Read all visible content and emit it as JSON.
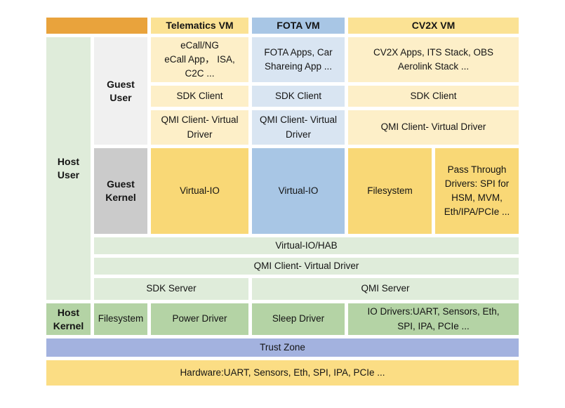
{
  "colors": {
    "orange": "#E9A33C",
    "yellow_header": "#FBE294",
    "yellow_light": "#FDEFC8",
    "yellow_dark": "#F9D876",
    "yellow_hardware": "#FBDD84",
    "blue_header": "#A8C6E5",
    "blue_light": "#D9E5F2",
    "blue_trust": "#A3B2DF",
    "green_light": "#DFECDA",
    "green_dark": "#B4D3A5",
    "gray_light": "#F0F0F0",
    "gray_dark": "#CBCBCB"
  },
  "headers": {
    "telematics": "Telematics VM",
    "fota": "FOTA VM",
    "cv2x": "CV2X VM"
  },
  "side_labels": {
    "host_user": "Host\nUser",
    "guest_user": "Guest\nUser",
    "guest_kernel": "Guest\nKernel",
    "host_kernel": "Host\nKernel"
  },
  "telematics_vm": {
    "apps": "eCall/NG\neCall App， ISA,\nC2C ...",
    "sdk_client": "SDK Client",
    "qmi_client": "QMI Client- Virtual\nDriver",
    "kernel": "Virtual-IO"
  },
  "fota_vm": {
    "apps": "FOTA Apps, Car\nShareing App ...",
    "sdk_client": "SDK Client",
    "qmi_client": "QMI Client- Virtual\nDriver",
    "kernel": "Virtual-IO"
  },
  "cv2x_vm": {
    "apps": "CV2X Apps, ITS Stack, OBS\nAerolink Stack ...",
    "sdk_client": "SDK Client",
    "qmi_client": "QMI Client- Virtual Driver",
    "kernel_filesystem": "Filesystem",
    "kernel_passthrough": "Pass Through\nDrivers: SPI for\nHSM, MVM,\nEth/IPA/PCIe ..."
  },
  "host_layers": {
    "virtual_io_hab": "Virtual-IO/HAB",
    "qmi_client_virtual_driver": "QMI Client- Virtual Driver",
    "sdk_server": "SDK Server",
    "qmi_server": "QMI Server",
    "filesystem": "Filesystem",
    "power_driver": "Power Driver",
    "sleep_driver": "Sleep Driver",
    "io_drivers": "IO Drivers:UART, Sensors, Eth,\nSPI, IPA, PCIe ...",
    "trust_zone": "Trust Zone",
    "hardware": "Hardware:UART, Sensors, Eth, SPI, IPA, PCIe ..."
  }
}
